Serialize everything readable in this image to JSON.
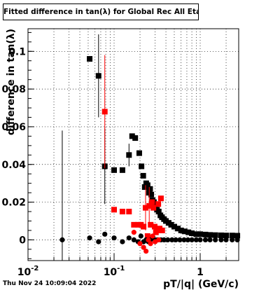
{
  "chart_data": {
    "type": "scatter",
    "title": "Fitted difference in tan(λ) for Global Rec All EtapT",
    "xlabel": "pT/|q| (GeV/c)",
    "ylabel": "difference in tan(λ)",
    "x_scale": "log",
    "xlim": [
      0.01,
      2.8
    ],
    "ylim": [
      -0.011,
      0.112
    ],
    "grid": true,
    "x_ticks": [
      {
        "value": 0.01,
        "label": "10",
        "exp": "-2"
      },
      {
        "value": 0.1,
        "label": "10",
        "exp": "-1"
      },
      {
        "value": 1,
        "label": "1",
        "exp": ""
      }
    ],
    "y_ticks": [
      {
        "value": 0,
        "label": "0"
      },
      {
        "value": 0.02,
        "label": "0.02"
      },
      {
        "value": 0.04,
        "label": "0.04"
      },
      {
        "value": 0.06,
        "label": "0.06"
      },
      {
        "value": 0.08,
        "label": "0.08"
      },
      {
        "value": 0.1,
        "label": "0.1"
      }
    ],
    "series": [
      {
        "marker": "square",
        "color": "#000000",
        "points": [
          {
            "x": 0.052,
            "y": 0.096
          },
          {
            "x": 0.066,
            "y": 0.087,
            "err": 0.022
          },
          {
            "x": 0.078,
            "y": 0.039,
            "err": 0.02
          },
          {
            "x": 0.1,
            "y": 0.037
          },
          {
            "x": 0.125,
            "y": 0.037
          },
          {
            "x": 0.149,
            "y": 0.045,
            "err": 0.006
          },
          {
            "x": 0.162,
            "y": 0.055
          },
          {
            "x": 0.176,
            "y": 0.054
          },
          {
            "x": 0.196,
            "y": 0.046
          },
          {
            "x": 0.208,
            "y": 0.039
          },
          {
            "x": 0.218,
            "y": 0.034
          },
          {
            "x": 0.227,
            "y": 0.028
          },
          {
            "x": 0.236,
            "y": 0.03
          },
          {
            "x": 0.245,
            "y": 0.029
          },
          {
            "x": 0.254,
            "y": 0.025
          },
          {
            "x": 0.262,
            "y": 0.027
          },
          {
            "x": 0.27,
            "y": 0.024
          },
          {
            "x": 0.28,
            "y": 0.021
          },
          {
            "x": 0.29,
            "y": 0.02
          },
          {
            "x": 0.3,
            "y": 0.018
          },
          {
            "x": 0.315,
            "y": 0.016
          },
          {
            "x": 0.33,
            "y": 0.015
          },
          {
            "x": 0.345,
            "y": 0.013
          },
          {
            "x": 0.36,
            "y": 0.012
          },
          {
            "x": 0.38,
            "y": 0.011
          },
          {
            "x": 0.4,
            "y": 0.01
          },
          {
            "x": 0.43,
            "y": 0.009
          },
          {
            "x": 0.46,
            "y": 0.008
          },
          {
            "x": 0.5,
            "y": 0.007
          },
          {
            "x": 0.55,
            "y": 0.006
          },
          {
            "x": 0.6,
            "y": 0.005
          },
          {
            "x": 0.66,
            "y": 0.0045
          },
          {
            "x": 0.73,
            "y": 0.004
          },
          {
            "x": 0.8,
            "y": 0.0035
          },
          {
            "x": 0.9,
            "y": 0.003
          },
          {
            "x": 1.0,
            "y": 0.003
          },
          {
            "x": 1.15,
            "y": 0.0028
          },
          {
            "x": 1.3,
            "y": 0.0026
          },
          {
            "x": 1.5,
            "y": 0.0025
          },
          {
            "x": 1.75,
            "y": 0.0024
          },
          {
            "x": 2.0,
            "y": 0.0023
          },
          {
            "x": 2.35,
            "y": 0.0023
          },
          {
            "x": 2.7,
            "y": 0.0022
          }
        ]
      },
      {
        "marker": "square",
        "color": "#ff0000",
        "points": [
          {
            "x": 0.078,
            "y": 0.068,
            "err": 0.03
          },
          {
            "x": 0.1,
            "y": 0.016
          },
          {
            "x": 0.125,
            "y": 0.015
          },
          {
            "x": 0.149,
            "y": 0.015
          },
          {
            "x": 0.17,
            "y": 0.008
          },
          {
            "x": 0.19,
            "y": 0.008
          },
          {
            "x": 0.205,
            "y": 0.008
          },
          {
            "x": 0.22,
            "y": 0.007
          },
          {
            "x": 0.232,
            "y": 0.017,
            "err": 0.012
          },
          {
            "x": 0.245,
            "y": 0.002
          },
          {
            "x": 0.256,
            "y": 0.018,
            "err": 0.01
          },
          {
            "x": 0.266,
            "y": 0.008
          },
          {
            "x": 0.276,
            "y": 0.02
          },
          {
            "x": 0.286,
            "y": 0.017
          },
          {
            "x": 0.296,
            "y": 0.007
          },
          {
            "x": 0.306,
            "y": 0.004
          },
          {
            "x": 0.316,
            "y": 0.005
          },
          {
            "x": 0.326,
            "y": 0.019
          },
          {
            "x": 0.338,
            "y": 0.006
          },
          {
            "x": 0.35,
            "y": 0.022
          },
          {
            "x": 0.362,
            "y": 0.005
          }
        ]
      },
      {
        "marker": "circle",
        "color": "#000000",
        "points": [
          {
            "x": 0.025,
            "y": 0.0,
            "err": 0.058
          },
          {
            "x": 0.052,
            "y": 0.001
          },
          {
            "x": 0.066,
            "y": -0.001
          },
          {
            "x": 0.078,
            "y": 0.003
          },
          {
            "x": 0.1,
            "y": 0.001
          },
          {
            "x": 0.125,
            "y": -0.001
          },
          {
            "x": 0.149,
            "y": 0.001
          },
          {
            "x": 0.17,
            "y": 0.0
          },
          {
            "x": 0.19,
            "y": -0.001
          },
          {
            "x": 0.205,
            "y": 0.002
          },
          {
            "x": 0.22,
            "y": -0.001
          },
          {
            "x": 0.235,
            "y": 0.0
          },
          {
            "x": 0.25,
            "y": -0.001
          },
          {
            "x": 0.265,
            "y": 0.0
          },
          {
            "x": 0.28,
            "y": 0.001
          },
          {
            "x": 0.3,
            "y": 0.0
          },
          {
            "x": 0.32,
            "y": 0.0
          },
          {
            "x": 0.35,
            "y": 0.0
          },
          {
            "x": 0.38,
            "y": 0.0
          },
          {
            "x": 0.42,
            "y": 0.0
          },
          {
            "x": 0.47,
            "y": 0.0
          },
          {
            "x": 0.52,
            "y": 0.0
          },
          {
            "x": 0.58,
            "y": 0.0
          },
          {
            "x": 0.65,
            "y": 0.0
          },
          {
            "x": 0.72,
            "y": 0.0
          },
          {
            "x": 0.8,
            "y": 0.0
          },
          {
            "x": 0.9,
            "y": 0.0
          },
          {
            "x": 1.0,
            "y": 0.0
          },
          {
            "x": 1.15,
            "y": 0.0
          },
          {
            "x": 1.3,
            "y": 0.0
          },
          {
            "x": 1.5,
            "y": 0.0
          },
          {
            "x": 1.75,
            "y": 0.0
          },
          {
            "x": 2.0,
            "y": 0.0
          },
          {
            "x": 2.35,
            "y": 0.0
          },
          {
            "x": 2.7,
            "y": 0.0
          }
        ]
      },
      {
        "marker": "circle",
        "color": "#ff0000",
        "points": [
          {
            "x": 0.17,
            "y": 0.004
          },
          {
            "x": 0.2,
            "y": -0.002
          },
          {
            "x": 0.22,
            "y": -0.004
          },
          {
            "x": 0.235,
            "y": -0.006
          },
          {
            "x": 0.25,
            "y": 0.0
          },
          {
            "x": 0.265,
            "y": -0.002
          },
          {
            "x": 0.28,
            "y": 0.002
          },
          {
            "x": 0.3,
            "y": -0.001
          },
          {
            "x": 0.33,
            "y": 0.0
          }
        ]
      }
    ]
  },
  "timestamp": "Thu Nov 24 10:09:04 2022"
}
